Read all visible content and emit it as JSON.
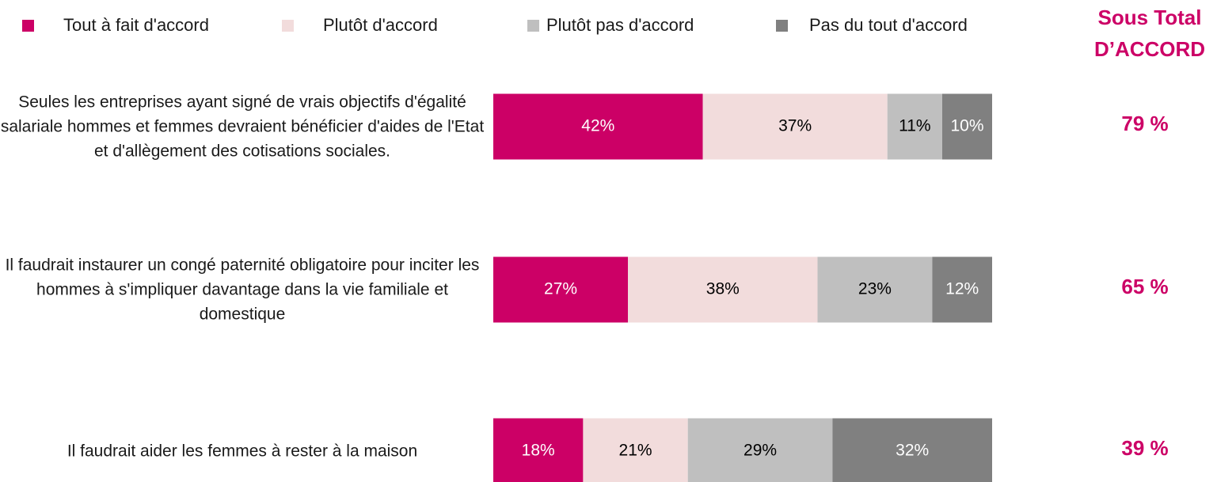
{
  "chart_data": {
    "type": "stacked-bar-horizontal",
    "categories": [
      "Seules les entreprises ayant signé de vrais objectifs d'égalité salariale hommes et femmes devraient bénéficier d'aides de l'Etat et d'allègement des cotisations sociales.",
      "Il faudrait instaurer un congé paternité obligatoire pour inciter les hommes à s'impliquer davantage dans la vie familiale et domestique",
      "Il faudrait aider les femmes à rester à la maison"
    ],
    "series": [
      {
        "name": "Tout à fait d'accord",
        "color": "#cc0066",
        "label_color": "#ffffff",
        "values": [
          42,
          27,
          18
        ],
        "value_labels": [
          "42%",
          "27%",
          "18%"
        ]
      },
      {
        "name": "Plutôt d'accord",
        "color": "#f2dcdc",
        "label_color": "#000000",
        "values": [
          37,
          38,
          21
        ],
        "value_labels": [
          "37%",
          "38%",
          "21%"
        ]
      },
      {
        "name": "Plutôt pas d'accord",
        "color": "#bfbfbf",
        "label_color": "#000000",
        "values": [
          11,
          23,
          29
        ],
        "value_labels": [
          "11%",
          "23%",
          "29%"
        ]
      },
      {
        "name": "Pas du tout d'accord",
        "color": "#808080",
        "label_color": "#ffffff",
        "values": [
          10,
          12,
          32
        ],
        "value_labels": [
          "10%",
          "12%",
          "32%"
        ]
      }
    ],
    "xlim": [
      0,
      100
    ],
    "legend": "top",
    "subtotal": {
      "title": "Sous Total D’ACCORD",
      "color": "#cc0066",
      "values": [
        79,
        65,
        39
      ],
      "value_labels": [
        "79 %",
        "65 %",
        "39 %"
      ]
    }
  }
}
